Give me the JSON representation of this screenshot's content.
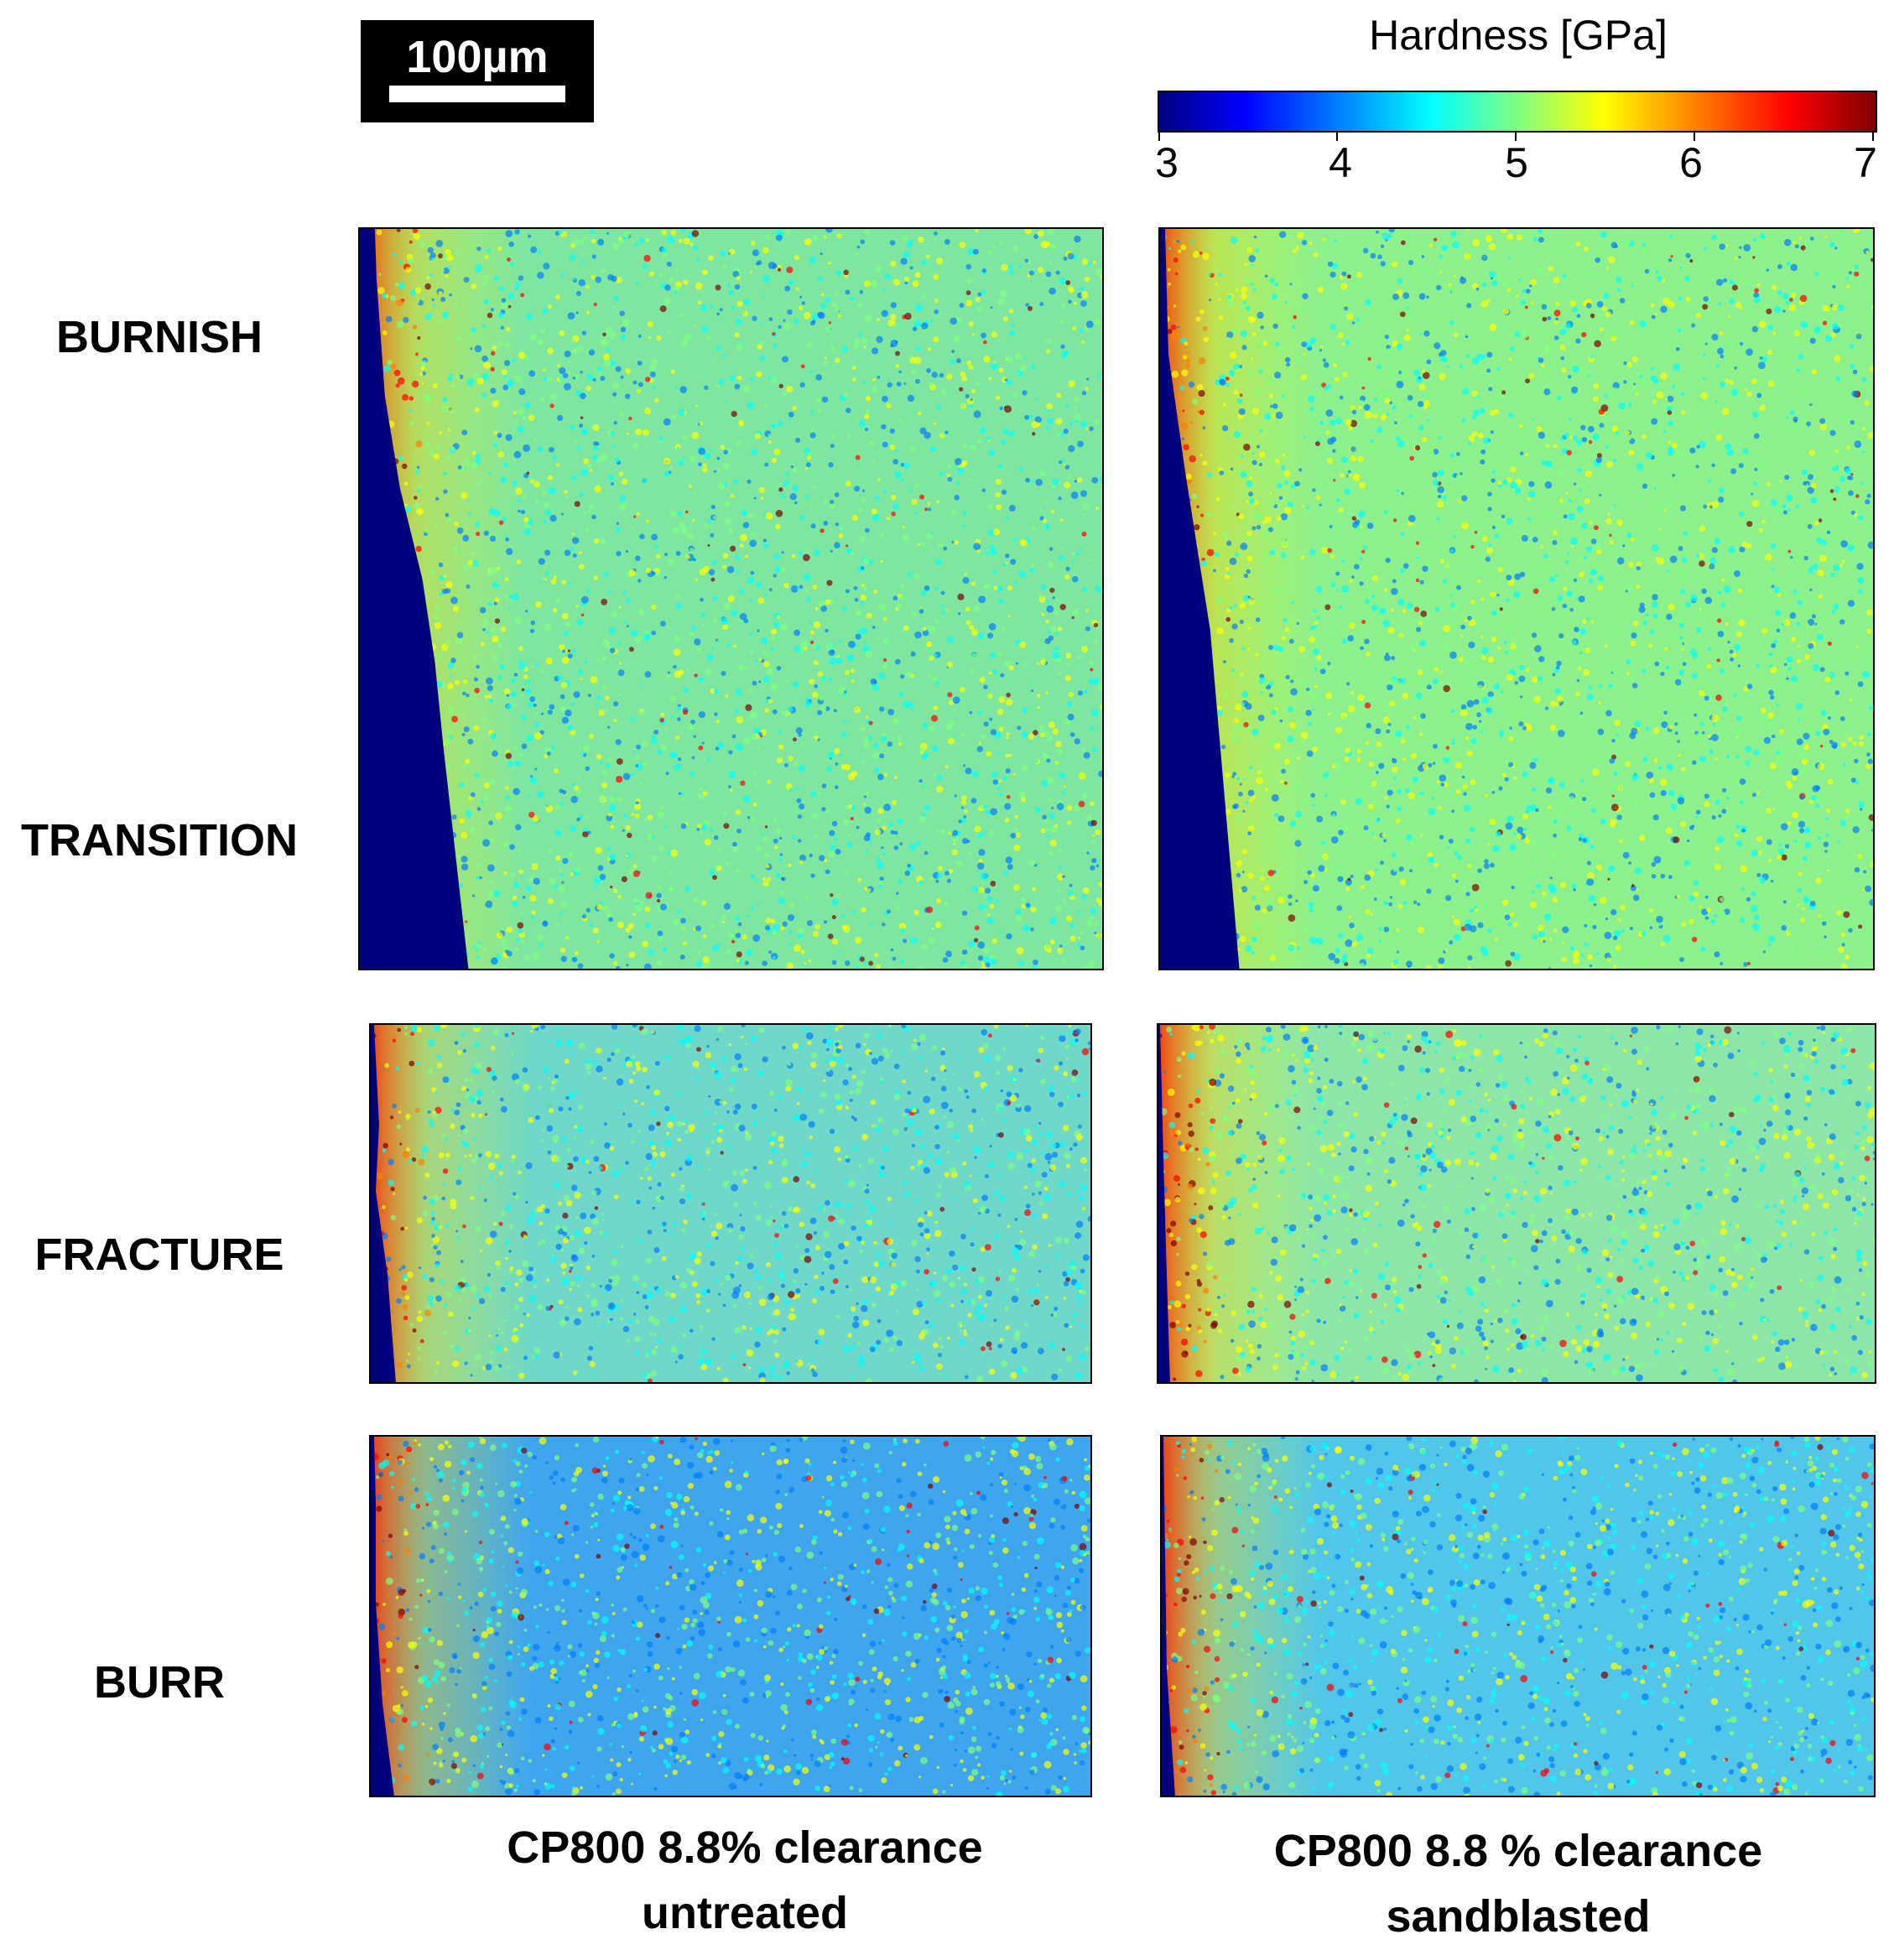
{
  "scalebar": {
    "label": "100µm"
  },
  "colorbar": {
    "title": "Hardness [GPa]",
    "ticks": [
      "3",
      "4",
      "5",
      "6",
      "7"
    ],
    "colormap": "jet",
    "stops": [
      "#00007f",
      "#0000ff",
      "#007fff",
      "#00ffff",
      "#7fff7f",
      "#ffff00",
      "#ff7f00",
      "#ff0000",
      "#7f0000"
    ]
  },
  "regions": [
    "BURNISH",
    "TRANSITION",
    "FRACTURE",
    "BURR"
  ],
  "columns": [
    {
      "line1": "CP800 8.8% clearance",
      "line2": "untreated"
    },
    {
      "line1": "CP800 8.8 % clearance",
      "line2": "sandblasted"
    }
  ],
  "panels": [
    {
      "name": "burnish-transition-untreated-map",
      "base": "#7fe6a0",
      "background": "#00007f"
    },
    {
      "name": "burnish-transition-sandblasted-map",
      "base": "#8cf08c",
      "background": "#00007f"
    },
    {
      "name": "fracture-untreated-map",
      "base": "#6fd8c8",
      "background": "#00007f"
    },
    {
      "name": "fracture-sandblasted-map",
      "base": "#8ce6a8",
      "background": "#00007f"
    },
    {
      "name": "burr-untreated-map",
      "base": "#3fa6ee",
      "background": "#00007f"
    },
    {
      "name": "burr-sandblasted-map",
      "base": "#52c6e8",
      "background": "#00007f"
    }
  ]
}
